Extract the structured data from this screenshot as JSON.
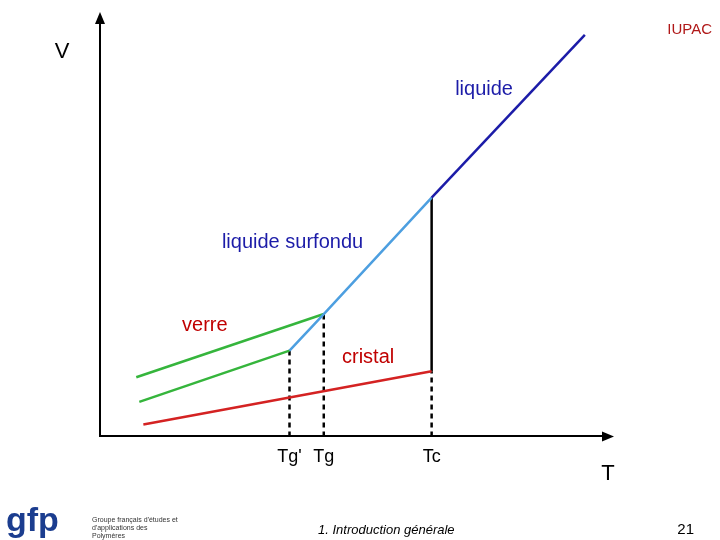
{
  "chart_data": {
    "type": "line",
    "x_label": "T",
    "y_label": "V",
    "xlim": [
      0,
      100
    ],
    "ylim": [
      0,
      105
    ],
    "xticks": [
      {
        "value": 37.6,
        "label": "Tg'"
      },
      {
        "value": 44.4,
        "label": "Tg"
      },
      {
        "value": 65.8,
        "label": "Tc"
      }
    ],
    "yticks": [],
    "grid": false,
    "tick_labels": "x",
    "series": [
      {
        "color": "#1c1ca8",
        "line_style": "solid",
        "x": [
          65.8,
          96.2
        ],
        "values": [
          60.5,
          101.75
        ]
      },
      {
        "color": "#4d9fe0",
        "line_style": "solid",
        "x": [
          37.6,
          44.4,
          65.8
        ],
        "values": [
          21.75,
          31,
          60.5
        ]
      },
      {
        "color": "#35b53c",
        "line_style": "solid",
        "x": [
          7.2,
          44.4
        ],
        "values": [
          15,
          31
        ]
      },
      {
        "color": "#35b53c",
        "line_style": "solid",
        "x": [
          7.8,
          37.6
        ],
        "values": [
          8.75,
          21.75
        ]
      },
      {
        "color": "#d42222",
        "line_style": "solid",
        "x": [
          8.6,
          65.8
        ],
        "values": [
          3,
          16.5
        ]
      },
      {
        "color": "#000000",
        "line_style": "solid",
        "x": [
          65.8,
          65.8
        ],
        "values": [
          16.5,
          60.5
        ]
      },
      {
        "color": "#000000",
        "line_style": "dashed",
        "x": [
          37.6,
          37.6
        ],
        "values": [
          0,
          21.75
        ]
      },
      {
        "color": "#000000",
        "line_style": "dashed",
        "x": [
          44.4,
          44.4
        ],
        "values": [
          0,
          31
        ]
      },
      {
        "color": "#000000",
        "line_style": "dashed",
        "x": [
          65.8,
          65.8
        ],
        "values": [
          0,
          16.5
        ]
      }
    ],
    "annotations": [
      {
        "text": "liquide",
        "x": 76.2,
        "y": 88,
        "color": "#1c1ca8"
      },
      {
        "text": "liquide surfondu",
        "x": 38.2,
        "y": 49.25,
        "color": "#1c1ca8"
      },
      {
        "text": "verre",
        "x": 20.8,
        "y": 28,
        "color": "#c00000"
      },
      {
        "text": "cristal",
        "x": 53.2,
        "y": 20,
        "color": "#c00000"
      }
    ]
  },
  "slide": {
    "logo_top": "IUPAC",
    "logo": "gfp",
    "logo_caption": "Groupe français d'études et d'applications des Polymères",
    "footer": "1. Introduction générale",
    "page": "21"
  }
}
